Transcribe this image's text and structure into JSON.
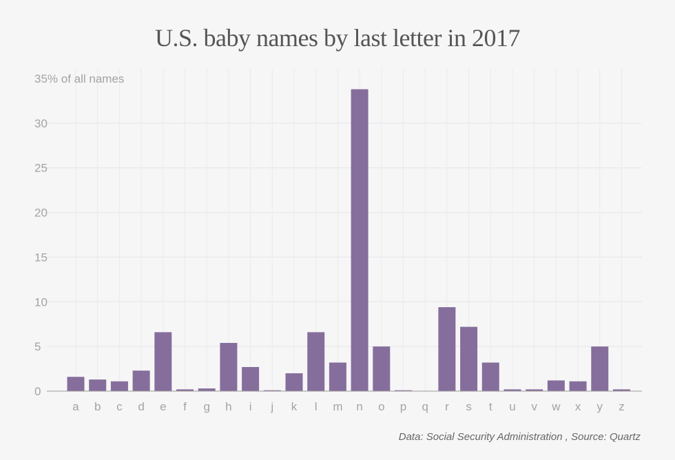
{
  "chart_data": {
    "type": "bar",
    "title": "U.S. baby names by last letter in 2017",
    "ylabel": "",
    "top_tick_label": "35% of all names",
    "xlabel": "",
    "categories": [
      "a",
      "b",
      "c",
      "d",
      "e",
      "f",
      "g",
      "h",
      "i",
      "j",
      "k",
      "l",
      "m",
      "n",
      "o",
      "p",
      "q",
      "r",
      "s",
      "t",
      "u",
      "v",
      "w",
      "x",
      "y",
      "z"
    ],
    "values": [
      1.6,
      1.3,
      1.1,
      2.3,
      6.6,
      0.2,
      0.3,
      5.4,
      2.7,
      0.1,
      2.0,
      6.6,
      3.2,
      33.8,
      5.0,
      0.1,
      0.0,
      9.4,
      7.2,
      3.2,
      0.2,
      0.2,
      1.2,
      1.1,
      5.0,
      0.2
    ],
    "y_ticks": [
      0,
      5,
      10,
      15,
      20,
      25,
      30,
      35
    ],
    "ylim": [
      0,
      35
    ],
    "grid": true,
    "bar_color": "#866e9c",
    "source": "Data: Social Security Administration , Source: Quartz"
  }
}
